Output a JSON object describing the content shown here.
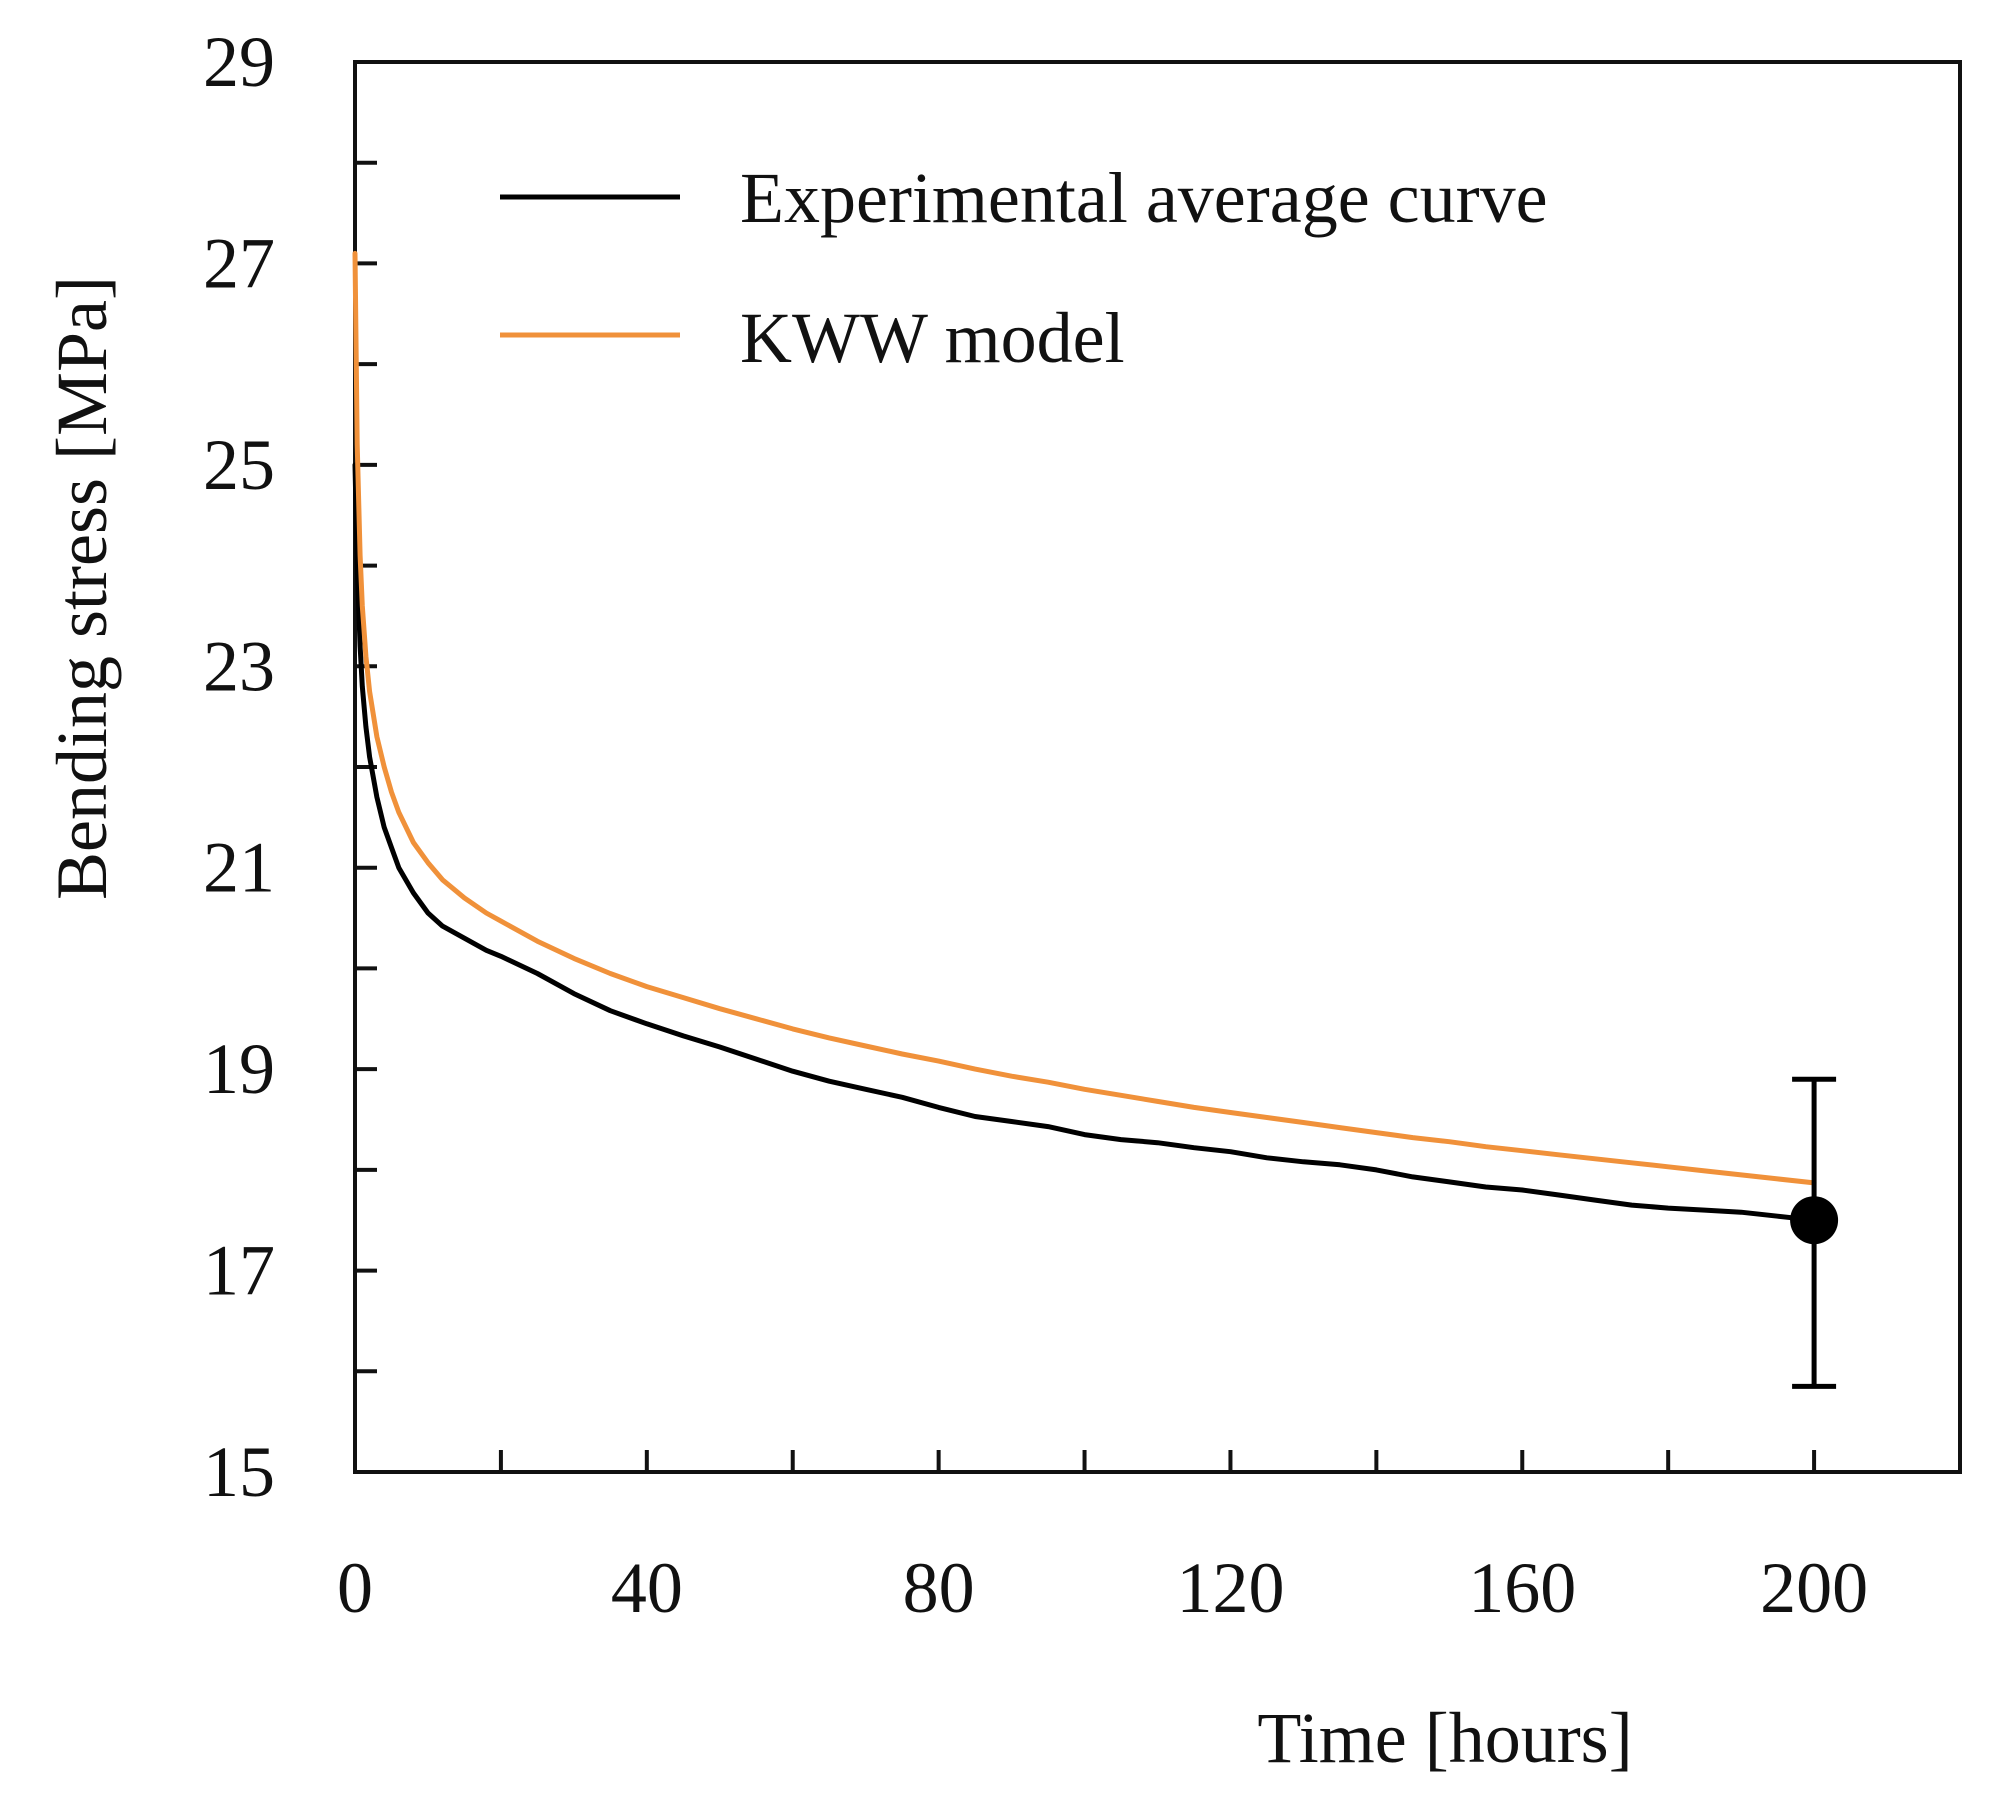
{
  "chart_data": {
    "type": "line",
    "title": "",
    "xlabel": "Time [hours]",
    "ylabel": "Bending stress [MPa]",
    "xlim": [
      0,
      220
    ],
    "ylim": [
      15,
      29
    ],
    "xticks": [
      0,
      40,
      80,
      120,
      160,
      200
    ],
    "xticks_minor": [
      20,
      60,
      100,
      140,
      180
    ],
    "yticks": [
      15,
      17,
      19,
      21,
      23,
      25,
      27,
      29
    ],
    "yticks_minor": [
      16,
      18,
      20,
      22,
      24,
      26,
      28
    ],
    "grid": false,
    "legend_position": "top-right",
    "series": [
      {
        "name": "Experimental average curve",
        "color": "#000000",
        "x": [
          0,
          0.3,
          0.7,
          1,
          1.5,
          2,
          3,
          4,
          5,
          6,
          8,
          10,
          12,
          15,
          18,
          20,
          25,
          30,
          35,
          40,
          45,
          50,
          55,
          60,
          65,
          70,
          75,
          80,
          85,
          90,
          95,
          100,
          105,
          110,
          115,
          120,
          125,
          130,
          135,
          140,
          145,
          150,
          155,
          160,
          165,
          170,
          175,
          180,
          185,
          190,
          195,
          200
        ],
        "y": [
          25.0,
          24.0,
          23.2,
          22.8,
          22.4,
          22.1,
          21.7,
          21.4,
          21.2,
          21.0,
          20.75,
          20.55,
          20.42,
          20.3,
          20.18,
          20.12,
          19.95,
          19.75,
          19.58,
          19.45,
          19.33,
          19.22,
          19.1,
          18.98,
          18.88,
          18.8,
          18.72,
          18.62,
          18.53,
          18.48,
          18.43,
          18.35,
          18.3,
          18.27,
          18.22,
          18.18,
          18.12,
          18.08,
          18.05,
          18.0,
          17.93,
          17.88,
          17.83,
          17.8,
          17.75,
          17.7,
          17.65,
          17.62,
          17.6,
          17.58,
          17.54,
          17.5
        ]
      },
      {
        "name": "KWW model",
        "color": "#F0913A",
        "x": [
          0,
          0.3,
          0.7,
          1,
          1.5,
          2,
          3,
          4,
          5,
          6,
          8,
          10,
          12,
          15,
          18,
          20,
          25,
          30,
          35,
          40,
          45,
          50,
          55,
          60,
          65,
          70,
          75,
          80,
          85,
          90,
          95,
          100,
          105,
          110,
          115,
          120,
          125,
          130,
          135,
          140,
          145,
          150,
          155,
          160,
          165,
          170,
          175,
          180,
          185,
          190,
          195,
          200
        ],
        "y": [
          27.1,
          25.2,
          24.1,
          23.6,
          23.1,
          22.75,
          22.3,
          22.0,
          21.75,
          21.55,
          21.25,
          21.05,
          20.88,
          20.7,
          20.55,
          20.47,
          20.27,
          20.1,
          19.95,
          19.82,
          19.71,
          19.6,
          19.5,
          19.4,
          19.31,
          19.23,
          19.15,
          19.08,
          19.0,
          18.93,
          18.87,
          18.8,
          18.74,
          18.68,
          18.62,
          18.57,
          18.52,
          18.47,
          18.42,
          18.37,
          18.32,
          18.28,
          18.23,
          18.19,
          18.15,
          18.11,
          18.07,
          18.03,
          17.99,
          17.95,
          17.91,
          17.87
        ]
      }
    ],
    "marker": {
      "x": 200,
      "y": 17.5,
      "error_low": 15.85,
      "error_high": 18.9
    }
  }
}
